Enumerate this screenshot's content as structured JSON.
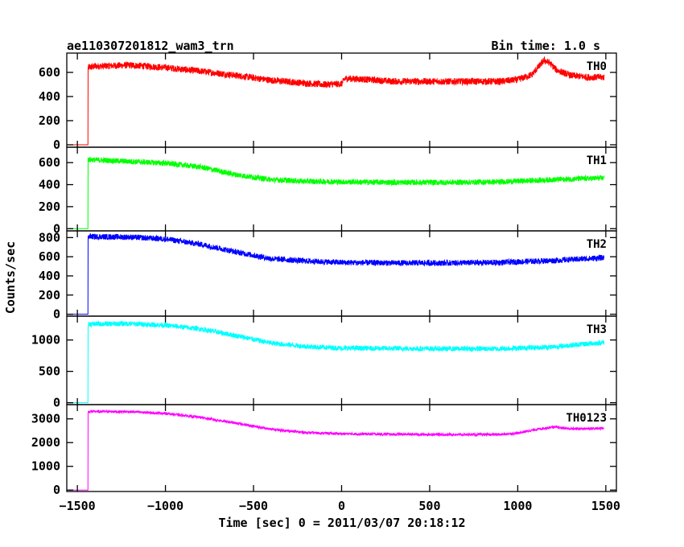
{
  "header": {
    "left_title": "ae110307201812_wam3_trn",
    "right_title": "Bin time: 1.0 s"
  },
  "chart_data": {
    "type": "line",
    "xlabel": "Time [sec] 0 = 2011/03/07 20:18:12",
    "ylabel": "Counts/sec",
    "xlim": [
      -1560,
      1560
    ],
    "x_ticks": [
      -1500,
      -1000,
      -500,
      0,
      500,
      1000,
      1500
    ],
    "x_tick_labels": [
      "−1500",
      "−1000",
      "−500",
      "0",
      "500",
      "1000",
      "1500"
    ],
    "grid": false,
    "panels": [
      {
        "name": "TH0",
        "color": "#ff0000",
        "ylim": [
          -20,
          760
        ],
        "yticks": [
          0,
          200,
          400,
          600
        ],
        "series_x": [
          -1550,
          -1440,
          -1439,
          -1400,
          -1200,
          -1000,
          -800,
          -600,
          -400,
          -200,
          -100,
          0,
          20,
          100,
          300,
          600,
          900,
          1000,
          1080,
          1120,
          1150,
          1180,
          1220,
          1300,
          1400,
          1490
        ],
        "series_y": [
          0,
          0,
          640,
          650,
          660,
          640,
          610,
          575,
          535,
          510,
          500,
          505,
          550,
          545,
          525,
          525,
          525,
          540,
          580,
          650,
          700,
          680,
          620,
          575,
          560,
          560
        ],
        "noise": 28
      },
      {
        "name": "TH1",
        "color": "#00ff00",
        "ylim": [
          -20,
          740
        ],
        "yticks": [
          0,
          200,
          400,
          600
        ],
        "series_x": [
          -1550,
          -1440,
          -1439,
          -1400,
          -1200,
          -1000,
          -800,
          -600,
          -400,
          -200,
          0,
          300,
          600,
          900,
          1200,
          1490
        ],
        "series_y": [
          0,
          0,
          630,
          625,
          610,
          595,
          560,
          490,
          445,
          430,
          425,
          420,
          420,
          425,
          445,
          460
        ],
        "noise": 25
      },
      {
        "name": "TH2",
        "color": "#0000ff",
        "ylim": [
          -20,
          870
        ],
        "yticks": [
          0,
          200,
          400,
          600,
          800
        ],
        "series_x": [
          -1550,
          -1440,
          -1439,
          -1400,
          -1200,
          -1000,
          -800,
          -600,
          -400,
          -200,
          0,
          300,
          600,
          900,
          1200,
          1490
        ],
        "series_y": [
          0,
          0,
          810,
          810,
          805,
          785,
          730,
          650,
          580,
          555,
          540,
          535,
          535,
          540,
          560,
          590
        ],
        "noise": 30
      },
      {
        "name": "TH3",
        "color": "#00ffff",
        "ylim": [
          -30,
          1380
        ],
        "yticks": [
          0,
          500,
          1000
        ],
        "series_x": [
          -1550,
          -1440,
          -1439,
          -1400,
          -1200,
          -1000,
          -800,
          -600,
          -400,
          -200,
          0,
          300,
          600,
          900,
          1200,
          1400,
          1490
        ],
        "series_y": [
          0,
          0,
          1250,
          1255,
          1260,
          1235,
          1175,
          1070,
          950,
          895,
          870,
          865,
          860,
          860,
          890,
          940,
          960
        ],
        "noise": 40
      },
      {
        "name": "TH0123",
        "color": "#ff00ff",
        "ylim": [
          -60,
          3600
        ],
        "yticks": [
          0,
          1000,
          2000,
          3000
        ],
        "series_x": [
          -1550,
          -1440,
          -1439,
          -1400,
          -1200,
          -1000,
          -800,
          -600,
          -400,
          -200,
          0,
          300,
          600,
          900,
          1000,
          1100,
          1200,
          1300,
          1490
        ],
        "series_y": [
          0,
          0,
          3300,
          3310,
          3300,
          3230,
          3060,
          2820,
          2560,
          2420,
          2370,
          2350,
          2340,
          2340,
          2400,
          2550,
          2660,
          2580,
          2600
        ],
        "noise": 55
      }
    ]
  }
}
